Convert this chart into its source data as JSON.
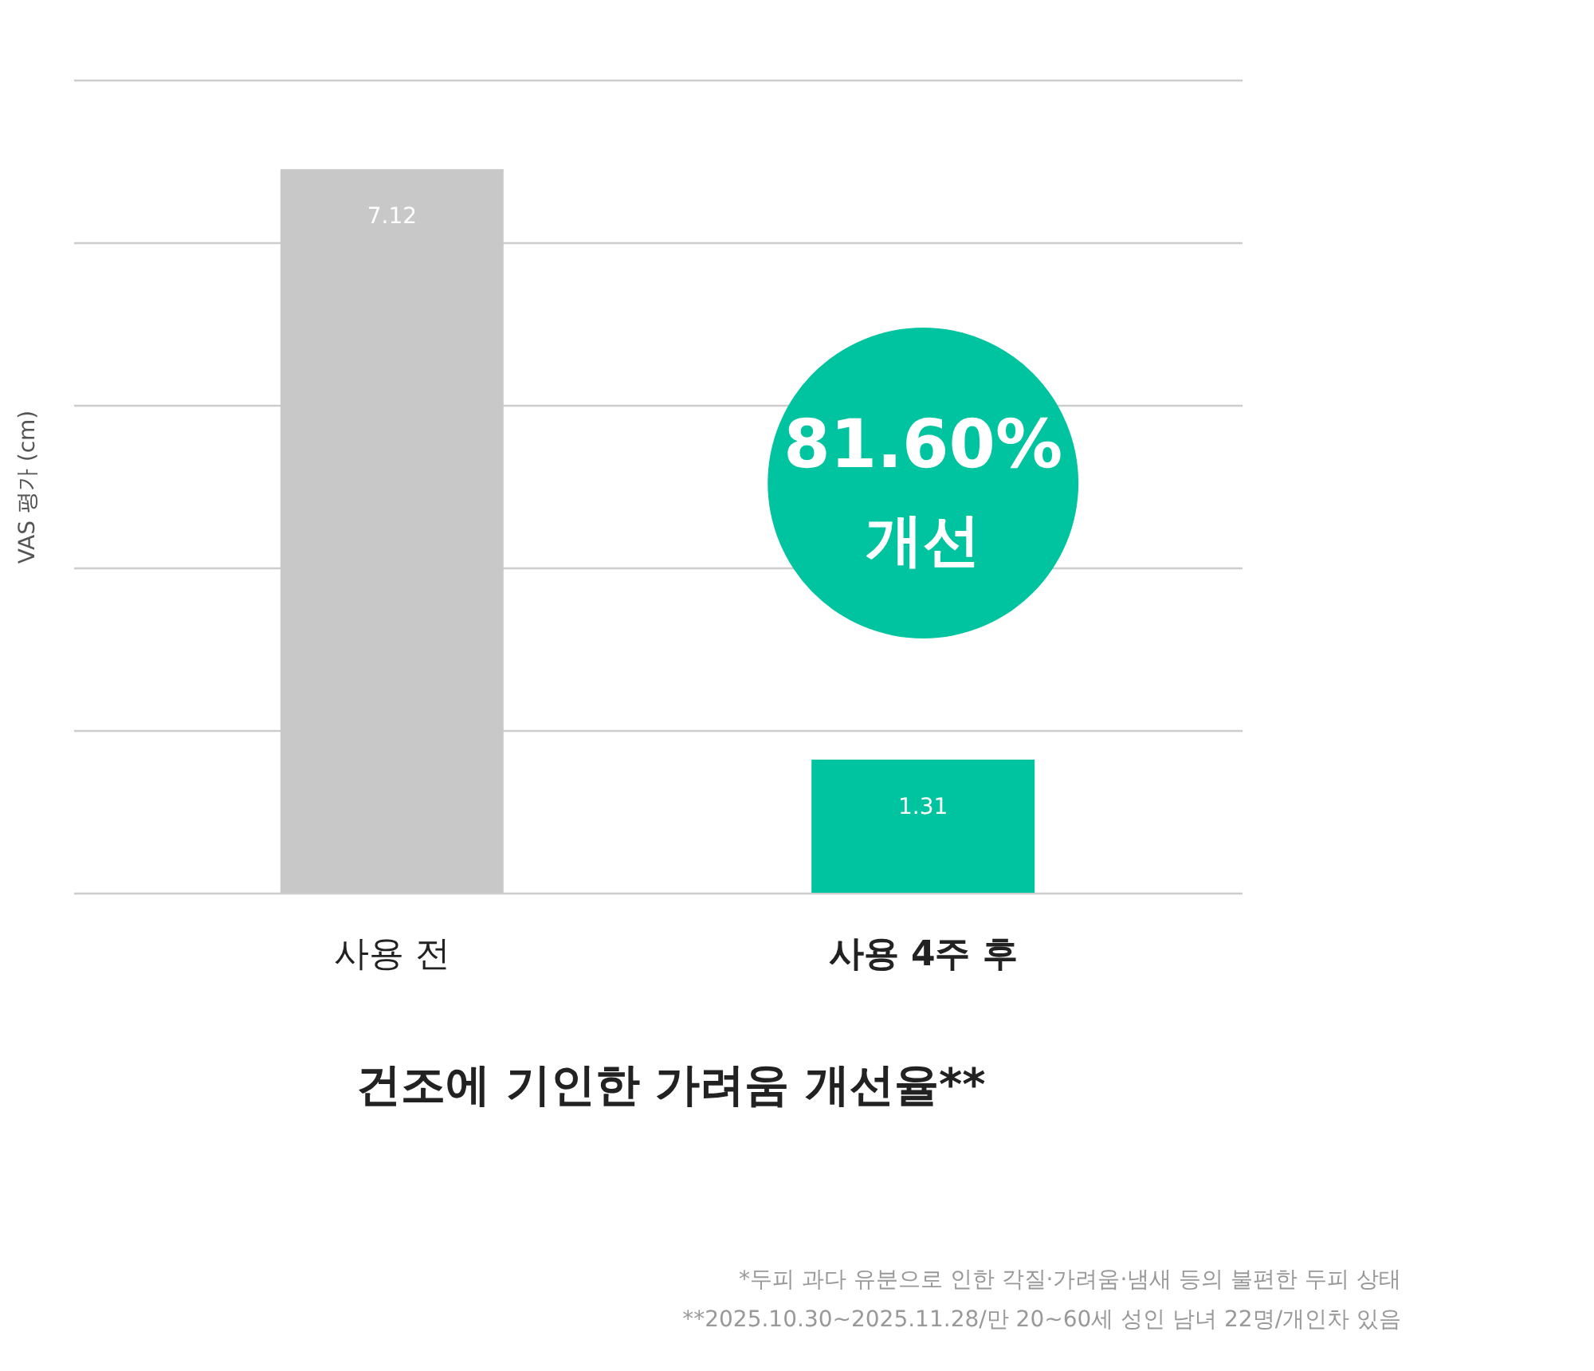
{
  "chart_data": {
    "type": "bar",
    "title": "건조에 기인한 가려움 개선율**",
    "ylabel": "VAS 평가 (cm)",
    "categories": [
      "사용 전",
      "사용 4주 후"
    ],
    "values": [
      7.12,
      1.31
    ],
    "colors": [
      "#c8c8c8",
      "#00c4a0"
    ],
    "data_labels": true,
    "relative": false,
    "ylim": [
      0,
      8
    ],
    "yticks": [
      {
        "value": 0,
        "label": null
      },
      {
        "value": 1.6,
        "label": null
      },
      {
        "value": 3.2,
        "label": null
      },
      {
        "value": 4.8,
        "label": null
      },
      {
        "value": 6.4,
        "label": null
      },
      {
        "value": 8,
        "label": null
      }
    ],
    "grid": "y",
    "annotations": [
      "81.60%",
      "개선",
      "*두피 과다 유분으로 인한 각질·가려움·냄새 등의 불편한 두피 상태",
      "**2025.10.30~2025.11.28/만 20~60세 성인 남녀 22명/개인차 있음"
    ]
  }
}
